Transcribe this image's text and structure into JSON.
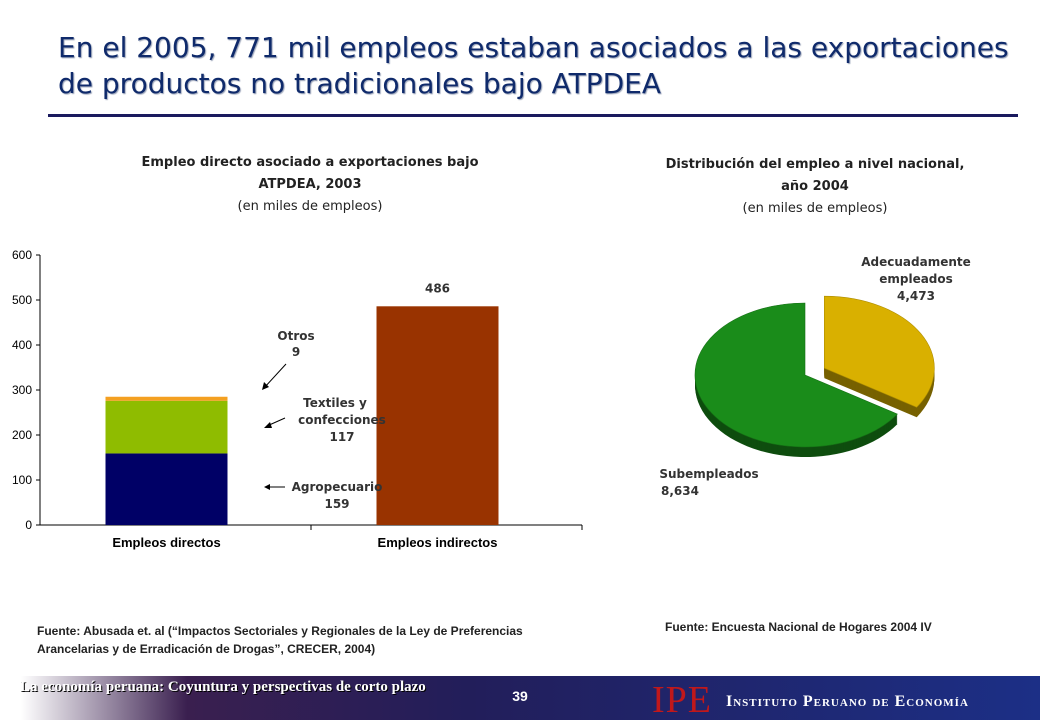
{
  "slide": {
    "title": "En el 2005, 771 mil empleos estaban asociados a las exportaciones de productos no tradicionales bajo ATPDEA",
    "page_number": "39",
    "footer_left": "La economía peruana: Coyuntura y perspectivas de corto plazo",
    "logo_text": "IPE",
    "logo_name": "Instituto Peruano de Economía",
    "colors": {
      "title": "#0f2a6b",
      "agropecuario": "#000066",
      "textiles": "#8fbc00",
      "otros": "#f4a020",
      "indirectos": "#993300",
      "pie_adecuado": "#d9b000",
      "pie_subempleado": "#1a8c1a",
      "logo": "#c0181b"
    }
  },
  "left_chart": {
    "heading_line1": "Empleo directo asociado a exportaciones bajo",
    "heading_line2": "ATPDEA, 2003",
    "heading_sub": "(en miles de empleos)",
    "source": "Fuente: Abusada et. al (“Impactos Sectoriales y Regionales de la Ley de Preferencias Arancelarias y de Erradicación de Drogas”, CRECER, 2004)"
  },
  "right_chart": {
    "heading_line1": "Distribución del empleo a nivel nacional,",
    "heading_line2": "año 2004",
    "heading_sub": "(en miles de empleos)",
    "source": "Fuente: Encuesta Nacional de Hogares 2004 IV"
  },
  "chart_data": [
    {
      "type": "bar",
      "stacked": true,
      "title": "Empleo directo asociado a exportaciones bajo ATPDEA, 2003",
      "subtitle": "(en miles de empleos)",
      "categories": [
        "Empleos directos",
        "Empleos indirectos"
      ],
      "series": [
        {
          "name": "Agropecuario",
          "values": [
            159,
            0
          ],
          "color": "#000066"
        },
        {
          "name": "Textiles y confecciones",
          "values": [
            117,
            0
          ],
          "color": "#8fbc00"
        },
        {
          "name": "Otros",
          "values": [
            9,
            0
          ],
          "color": "#f4a020"
        },
        {
          "name": "",
          "values": [
            0,
            486
          ],
          "color": "#993300"
        }
      ],
      "annotations": [
        {
          "label": "Otros",
          "value": "9"
        },
        {
          "label": "Textiles y confecciones",
          "value": "117"
        },
        {
          "label": "Agropecuario",
          "value": "159"
        },
        {
          "label": "",
          "value": "486"
        }
      ],
      "ylim": [
        0,
        600
      ],
      "yticks": [
        0,
        100,
        200,
        300,
        400,
        500,
        600
      ],
      "grid": false
    },
    {
      "type": "pie",
      "title": "Distribución del empleo a nivel nacional, año 2004",
      "subtitle": "(en miles de empleos)",
      "slices": [
        {
          "label": "Adecuadamente empleados",
          "value_label": "4,473",
          "value": 4473,
          "color": "#d9b000",
          "exploded": true
        },
        {
          "label": "Subempleados",
          "value_label": "8,634",
          "value": 8634,
          "color": "#1a8c1a",
          "exploded": false
        }
      ],
      "style": "3d"
    }
  ]
}
